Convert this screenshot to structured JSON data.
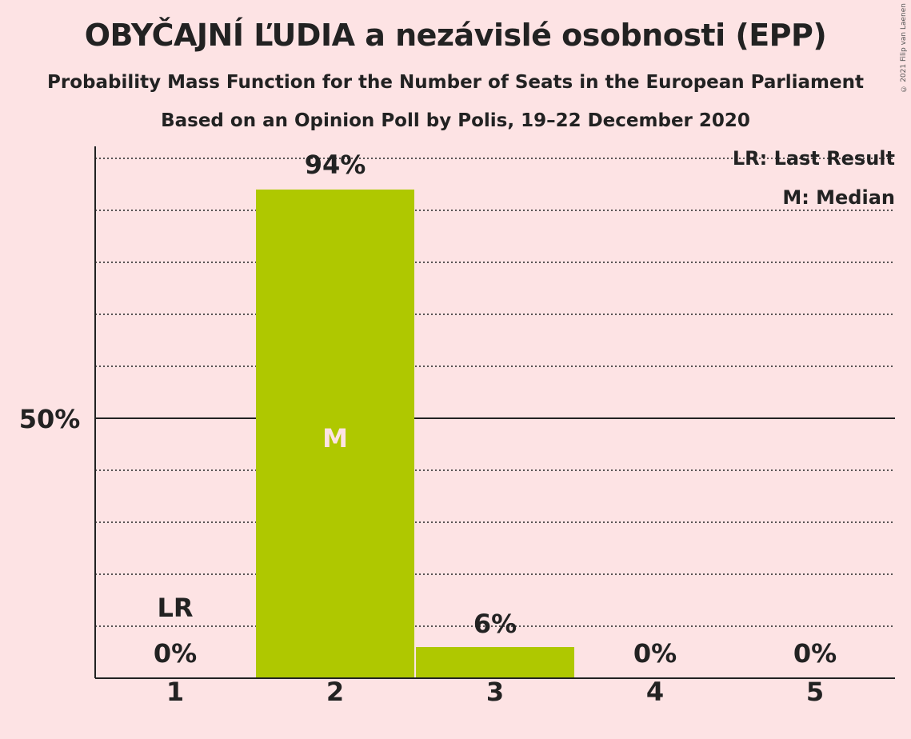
{
  "title": "OBYČAJNÍ ĽUDIA a nezávislé osobnosti (EPP)",
  "subtitle": "Probability Mass Function for the Number of Seats in the European Parliament",
  "subtitle2": "Based on an Opinion Poll by Polis, 19–22 December 2020",
  "copyright": "© 2021 Filip van Laenen",
  "legend": {
    "last_result": "LR: Last Result",
    "median": "M: Median"
  },
  "colors": {
    "bar": "#afc800",
    "background": "#fde3e4",
    "text": "#222222"
  },
  "chart_data": {
    "type": "bar",
    "categories": [
      "1",
      "2",
      "3",
      "4",
      "5"
    ],
    "values": [
      0,
      94,
      6,
      0,
      0
    ],
    "value_labels": [
      "0%",
      "94%",
      "6%",
      "0%",
      "0%"
    ],
    "ylim": [
      0,
      100
    ],
    "y_tick_label": "50%",
    "y_tick_value": 50,
    "last_result_category": "1",
    "last_result_label": "LR",
    "median_category": "2",
    "median_label": "M",
    "grid": true
  }
}
